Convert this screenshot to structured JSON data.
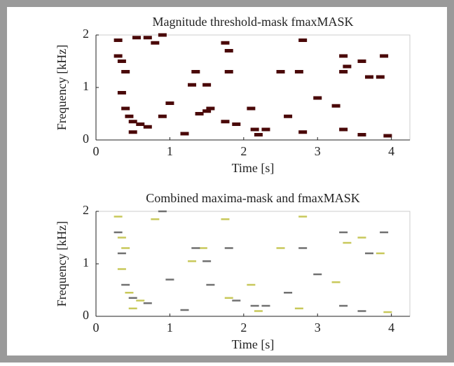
{
  "chart_data": [
    {
      "type": "scatter",
      "title": "Magnitude threshold-mask fmaxMASK",
      "x_label": "Time [s]",
      "y_label": "Frequency [kHz]",
      "xlim": [
        0,
        4.25
      ],
      "ylim": [
        0,
        2
      ],
      "xticks": [
        0,
        1,
        2,
        3,
        4
      ],
      "yticks": [
        0,
        1,
        2
      ],
      "series": [
        {
          "color": "#4a0808",
          "x": [
            0.3,
            0.3,
            0.35,
            0.4,
            0.35,
            0.4,
            0.45,
            0.5,
            0.6,
            0.7,
            0.55,
            0.7,
            0.8,
            0.9,
            1.0,
            0.9,
            1.3,
            1.35,
            1.5,
            1.4,
            1.5,
            1.55,
            1.75,
            1.8,
            1.8,
            1.75,
            1.9,
            2.1,
            2.3,
            2.5,
            2.6,
            2.8,
            2.75,
            2.8,
            3.0,
            3.25,
            3.35,
            3.4,
            3.35,
            3.6,
            3.7,
            3.85,
            3.9,
            3.95,
            3.6,
            3.35,
            2.15,
            0.5,
            1.2,
            2.2
          ],
          "y": [
            1.9,
            1.6,
            1.5,
            1.3,
            0.9,
            0.6,
            0.45,
            0.35,
            0.3,
            0.25,
            1.95,
            1.95,
            1.85,
            2.0,
            0.7,
            0.45,
            1.05,
            1.3,
            1.05,
            0.5,
            0.55,
            0.6,
            1.85,
            1.7,
            1.3,
            0.35,
            0.3,
            0.6,
            0.2,
            1.3,
            0.45,
            1.9,
            1.3,
            0.15,
            0.8,
            0.65,
            1.6,
            1.4,
            0.2,
            1.5,
            1.2,
            1.2,
            1.6,
            0.08,
            0.1,
            1.3,
            0.2,
            0.15,
            0.12,
            0.1
          ]
        }
      ]
    },
    {
      "type": "scatter",
      "title": "Combined maxima-mask and fmaxMASK",
      "x_label": "Time [s]",
      "y_label": "Frequency [kHz]",
      "xlim": [
        0,
        4.25
      ],
      "ylim": [
        0,
        2
      ],
      "xticks": [
        0,
        1,
        2,
        3,
        4
      ],
      "yticks": [
        0,
        1,
        2
      ],
      "series": [
        {
          "color": "#c8c85a",
          "x": [
            0.3,
            0.35,
            0.4,
            0.35,
            0.45,
            0.6,
            0.8,
            1.3,
            1.45,
            1.75,
            1.8,
            2.1,
            2.5,
            2.8,
            2.75,
            3.25,
            3.4,
            3.6,
            3.85,
            3.95,
            0.5,
            2.2
          ],
          "y": [
            1.9,
            1.5,
            1.3,
            0.9,
            0.45,
            0.3,
            1.85,
            1.05,
            1.3,
            1.85,
            0.35,
            0.6,
            1.3,
            1.9,
            0.15,
            0.65,
            1.4,
            1.5,
            1.2,
            0.08,
            0.15,
            0.1
          ]
        },
        {
          "color": "#707070",
          "x": [
            0.3,
            0.35,
            0.4,
            0.5,
            0.7,
            0.9,
            1.0,
            1.35,
            1.5,
            1.55,
            1.8,
            1.9,
            2.3,
            2.6,
            2.8,
            3.0,
            3.35,
            3.35,
            3.7,
            3.9,
            3.6,
            1.2,
            2.15
          ],
          "y": [
            1.6,
            1.2,
            0.6,
            0.35,
            0.25,
            2.0,
            0.7,
            1.3,
            1.05,
            0.6,
            1.3,
            0.3,
            0.2,
            0.45,
            1.3,
            0.8,
            1.6,
            0.2,
            1.2,
            1.6,
            0.1,
            0.12,
            0.2
          ]
        }
      ]
    }
  ]
}
